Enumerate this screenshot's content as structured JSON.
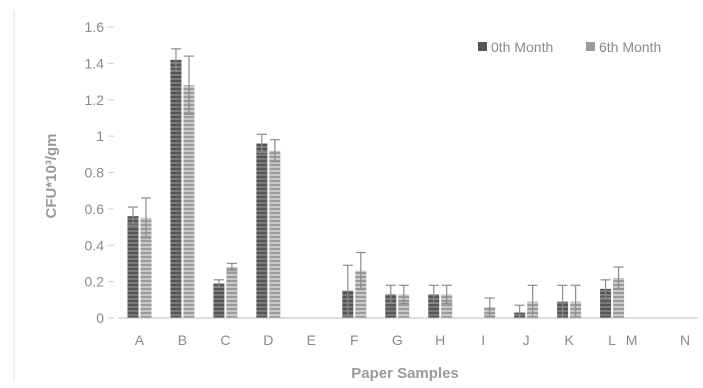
{
  "chart_data": {
    "type": "bar",
    "title": "",
    "xlabel": "Paper Samples",
    "ylabel": "CFU*10³/gm",
    "ylim": [
      0,
      1.6
    ],
    "yticks": [
      "0",
      "0.2",
      "0.4",
      "0.6",
      "0.8",
      "1",
      "1.2",
      "1.4",
      "1.6"
    ],
    "categories": [
      "A",
      "B",
      "C",
      "D",
      "E",
      "F",
      "G",
      "H",
      "I",
      "J",
      "K",
      "L",
      "M",
      "N"
    ],
    "grid": false,
    "legend_position": "top-right",
    "series": [
      {
        "name": "0th Month",
        "color": "#555555",
        "values": [
          0.56,
          1.42,
          0.19,
          0.96,
          0,
          0.15,
          0.13,
          0.13,
          0,
          0.03,
          0.09,
          0.16,
          0,
          0
        ],
        "errors": [
          0.05,
          0.06,
          0.02,
          0.05,
          0,
          0.14,
          0.05,
          0.05,
          0,
          0.04,
          0.09,
          0.05,
          0,
          0
        ]
      },
      {
        "name": "6th Month",
        "color": "#9b9b9b",
        "values": [
          0.55,
          1.28,
          0.28,
          0.92,
          0,
          0.26,
          0.13,
          0.13,
          0.06,
          0.09,
          0.09,
          0.22,
          0,
          0
        ],
        "errors": [
          0.11,
          0.16,
          0.02,
          0.06,
          0,
          0.1,
          0.05,
          0.05,
          0.05,
          0.09,
          0.09,
          0.06,
          0,
          0
        ]
      }
    ]
  }
}
